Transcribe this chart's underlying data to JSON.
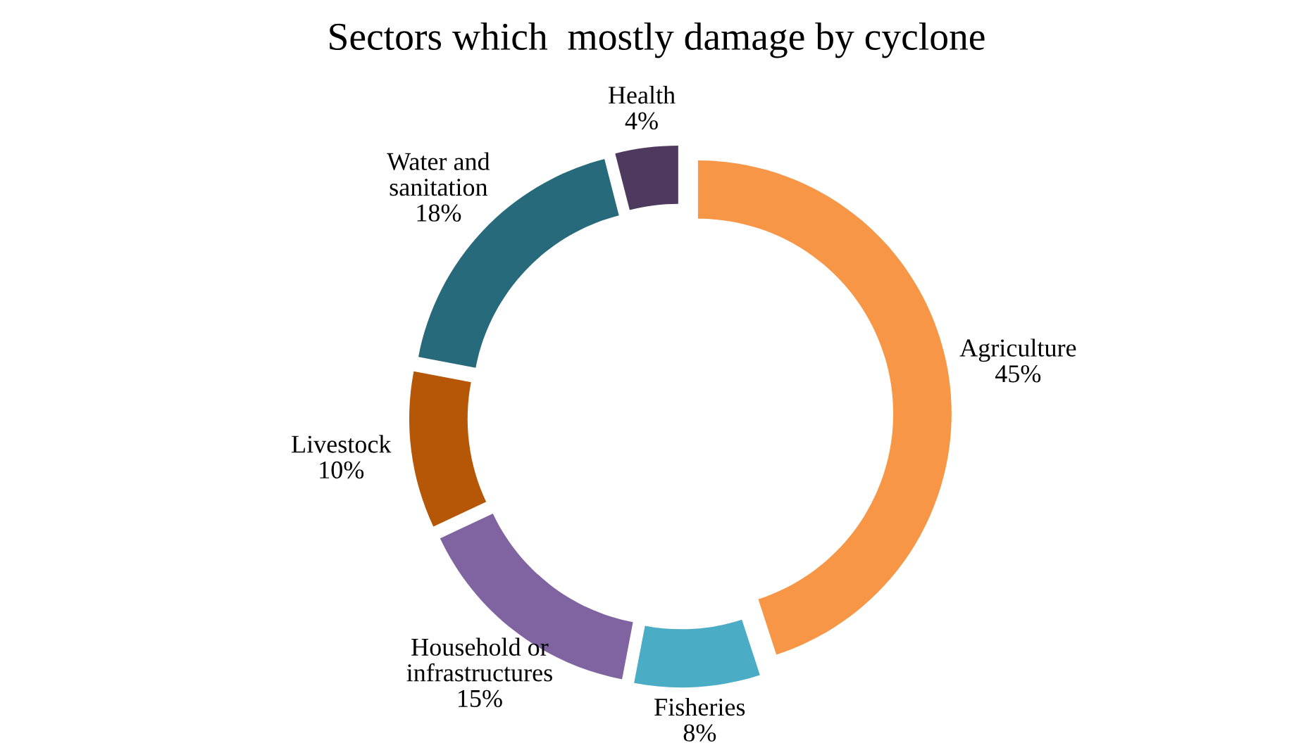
{
  "chart_data": {
    "type": "donut",
    "title": "Sectors which  mostly damage by cyclone",
    "categories": [
      "Agriculture",
      "Fisheries",
      "Household or\ninfrastructures",
      "Livestock",
      "Water and\nsanitation",
      "Health"
    ],
    "values": [
      45,
      8,
      15,
      10,
      18,
      4
    ],
    "value_labels": [
      "45%",
      "8%",
      "15%",
      "10%",
      "18%",
      "4%"
    ],
    "colors": [
      "#f79646",
      "#4bacc6",
      "#8064a2",
      "#b65708",
      "#276a7c",
      "#4f3a5f"
    ],
    "legend": false
  }
}
